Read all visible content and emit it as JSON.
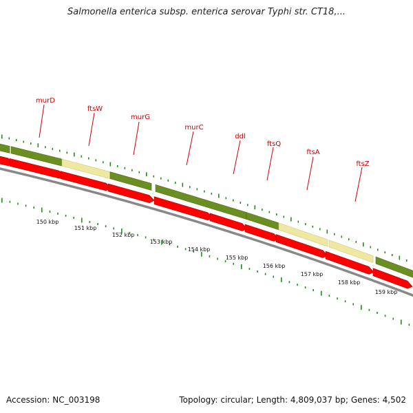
{
  "title": "Salmonella enterica subsp. enterica serovar Typhi str. CT18,...",
  "accession": "Accession: NC_003198",
  "stats": "Topology: circular; Length: 4,809,037 bp; Genes: 4,502",
  "colors": {
    "gene_green": "#6b8e23",
    "gene_yellow": "#eee8a0",
    "cds_red": "#ff0000",
    "backbone": "#888888",
    "tick": "#228b22",
    "label": "#cc0000"
  },
  "gene_labels": [
    {
      "name": "murD"
    },
    {
      "name": "ftsW"
    },
    {
      "name": "murG"
    },
    {
      "name": "murC"
    },
    {
      "name": "ddl"
    },
    {
      "name": "ftsQ"
    },
    {
      "name": "ftsA"
    },
    {
      "name": "ftsZ"
    }
  ],
  "kbp_labels": [
    "150 kbp",
    "151 kbp",
    "152 kbp",
    "153 kbp",
    "154 kbp",
    "155 kbp",
    "156 kbp",
    "157 kbp",
    "158 kbp",
    "159 kbp"
  ]
}
